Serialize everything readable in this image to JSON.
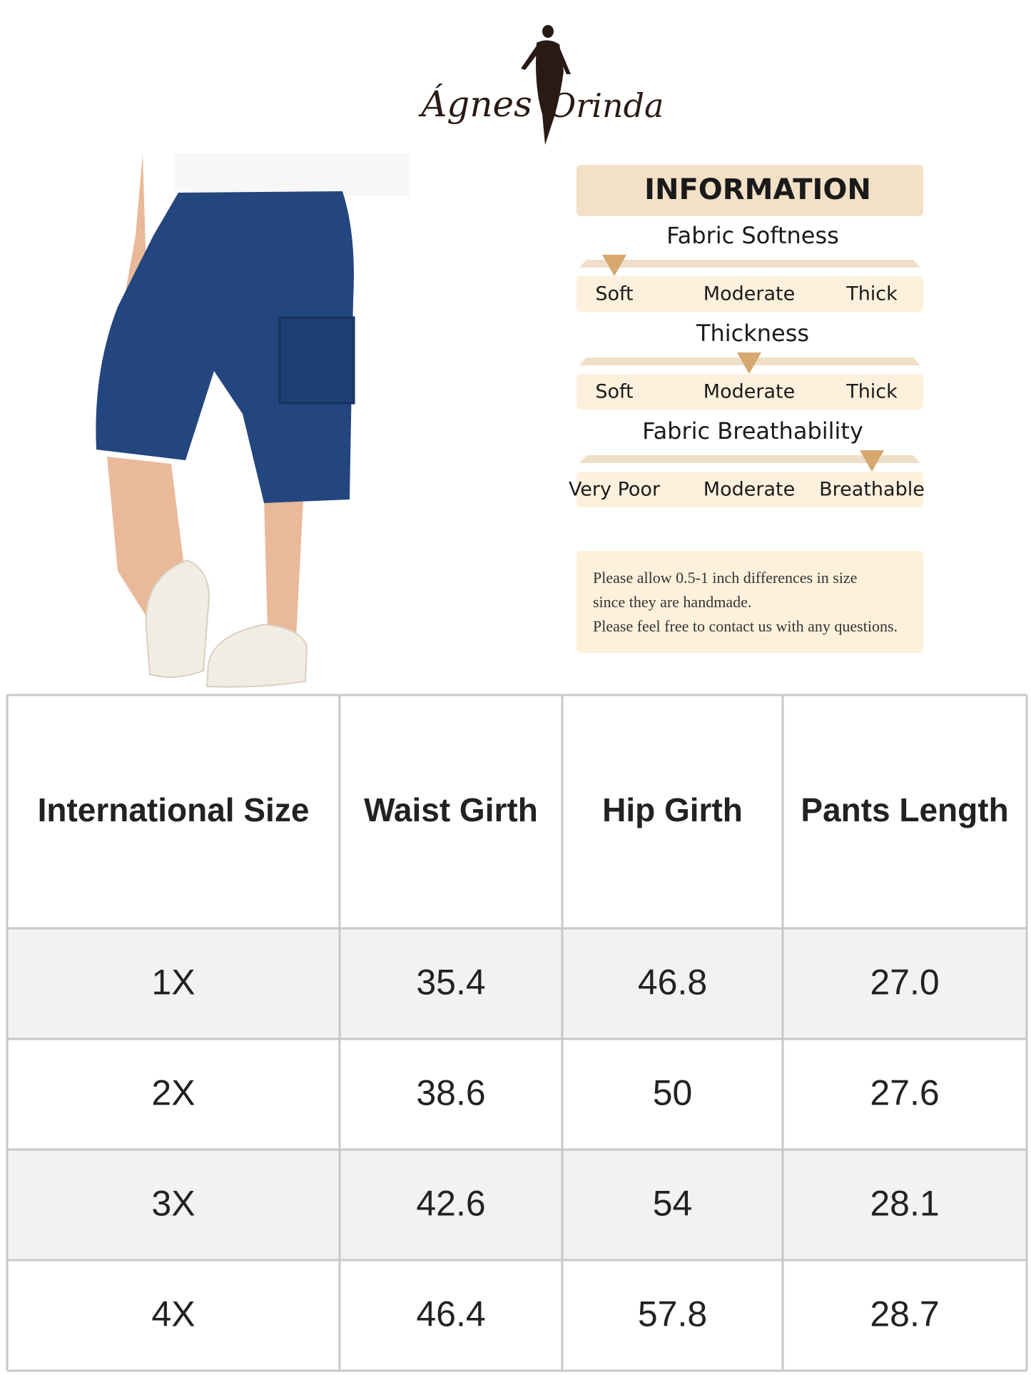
{
  "brand": {
    "name_left": "Ágnes",
    "name_right": "Orinda"
  },
  "information": {
    "title": "INFORMATION",
    "metrics": [
      {
        "name": "Fabric Softness",
        "labels": [
          "Soft",
          "Moderate",
          "Thick"
        ],
        "level": 0
      },
      {
        "name": "Thickness",
        "labels": [
          "Soft",
          "Moderate",
          "Thick"
        ],
        "level": 1
      },
      {
        "name": "Fabric Breathability",
        "labels": [
          "Very Poor",
          "Moderate",
          "Breathable"
        ],
        "level": 2
      }
    ],
    "note": [
      "Please allow 0.5-1 inch differences in size",
      "since they are handmade.",
      "Please feel free to contact us with any questions."
    ]
  },
  "table": {
    "header": [
      "International Size",
      "Waist Girth",
      "Hip Girth",
      "Pants Length"
    ],
    "rows": [
      [
        "1X",
        "35.4",
        "46.8",
        "27.0"
      ],
      [
        "2X",
        "38.6",
        "50",
        "27.6"
      ],
      [
        "3X",
        "42.6",
        "54",
        "28.1"
      ],
      [
        "4X",
        "46.4",
        "57.8",
        "28.7"
      ]
    ]
  }
}
